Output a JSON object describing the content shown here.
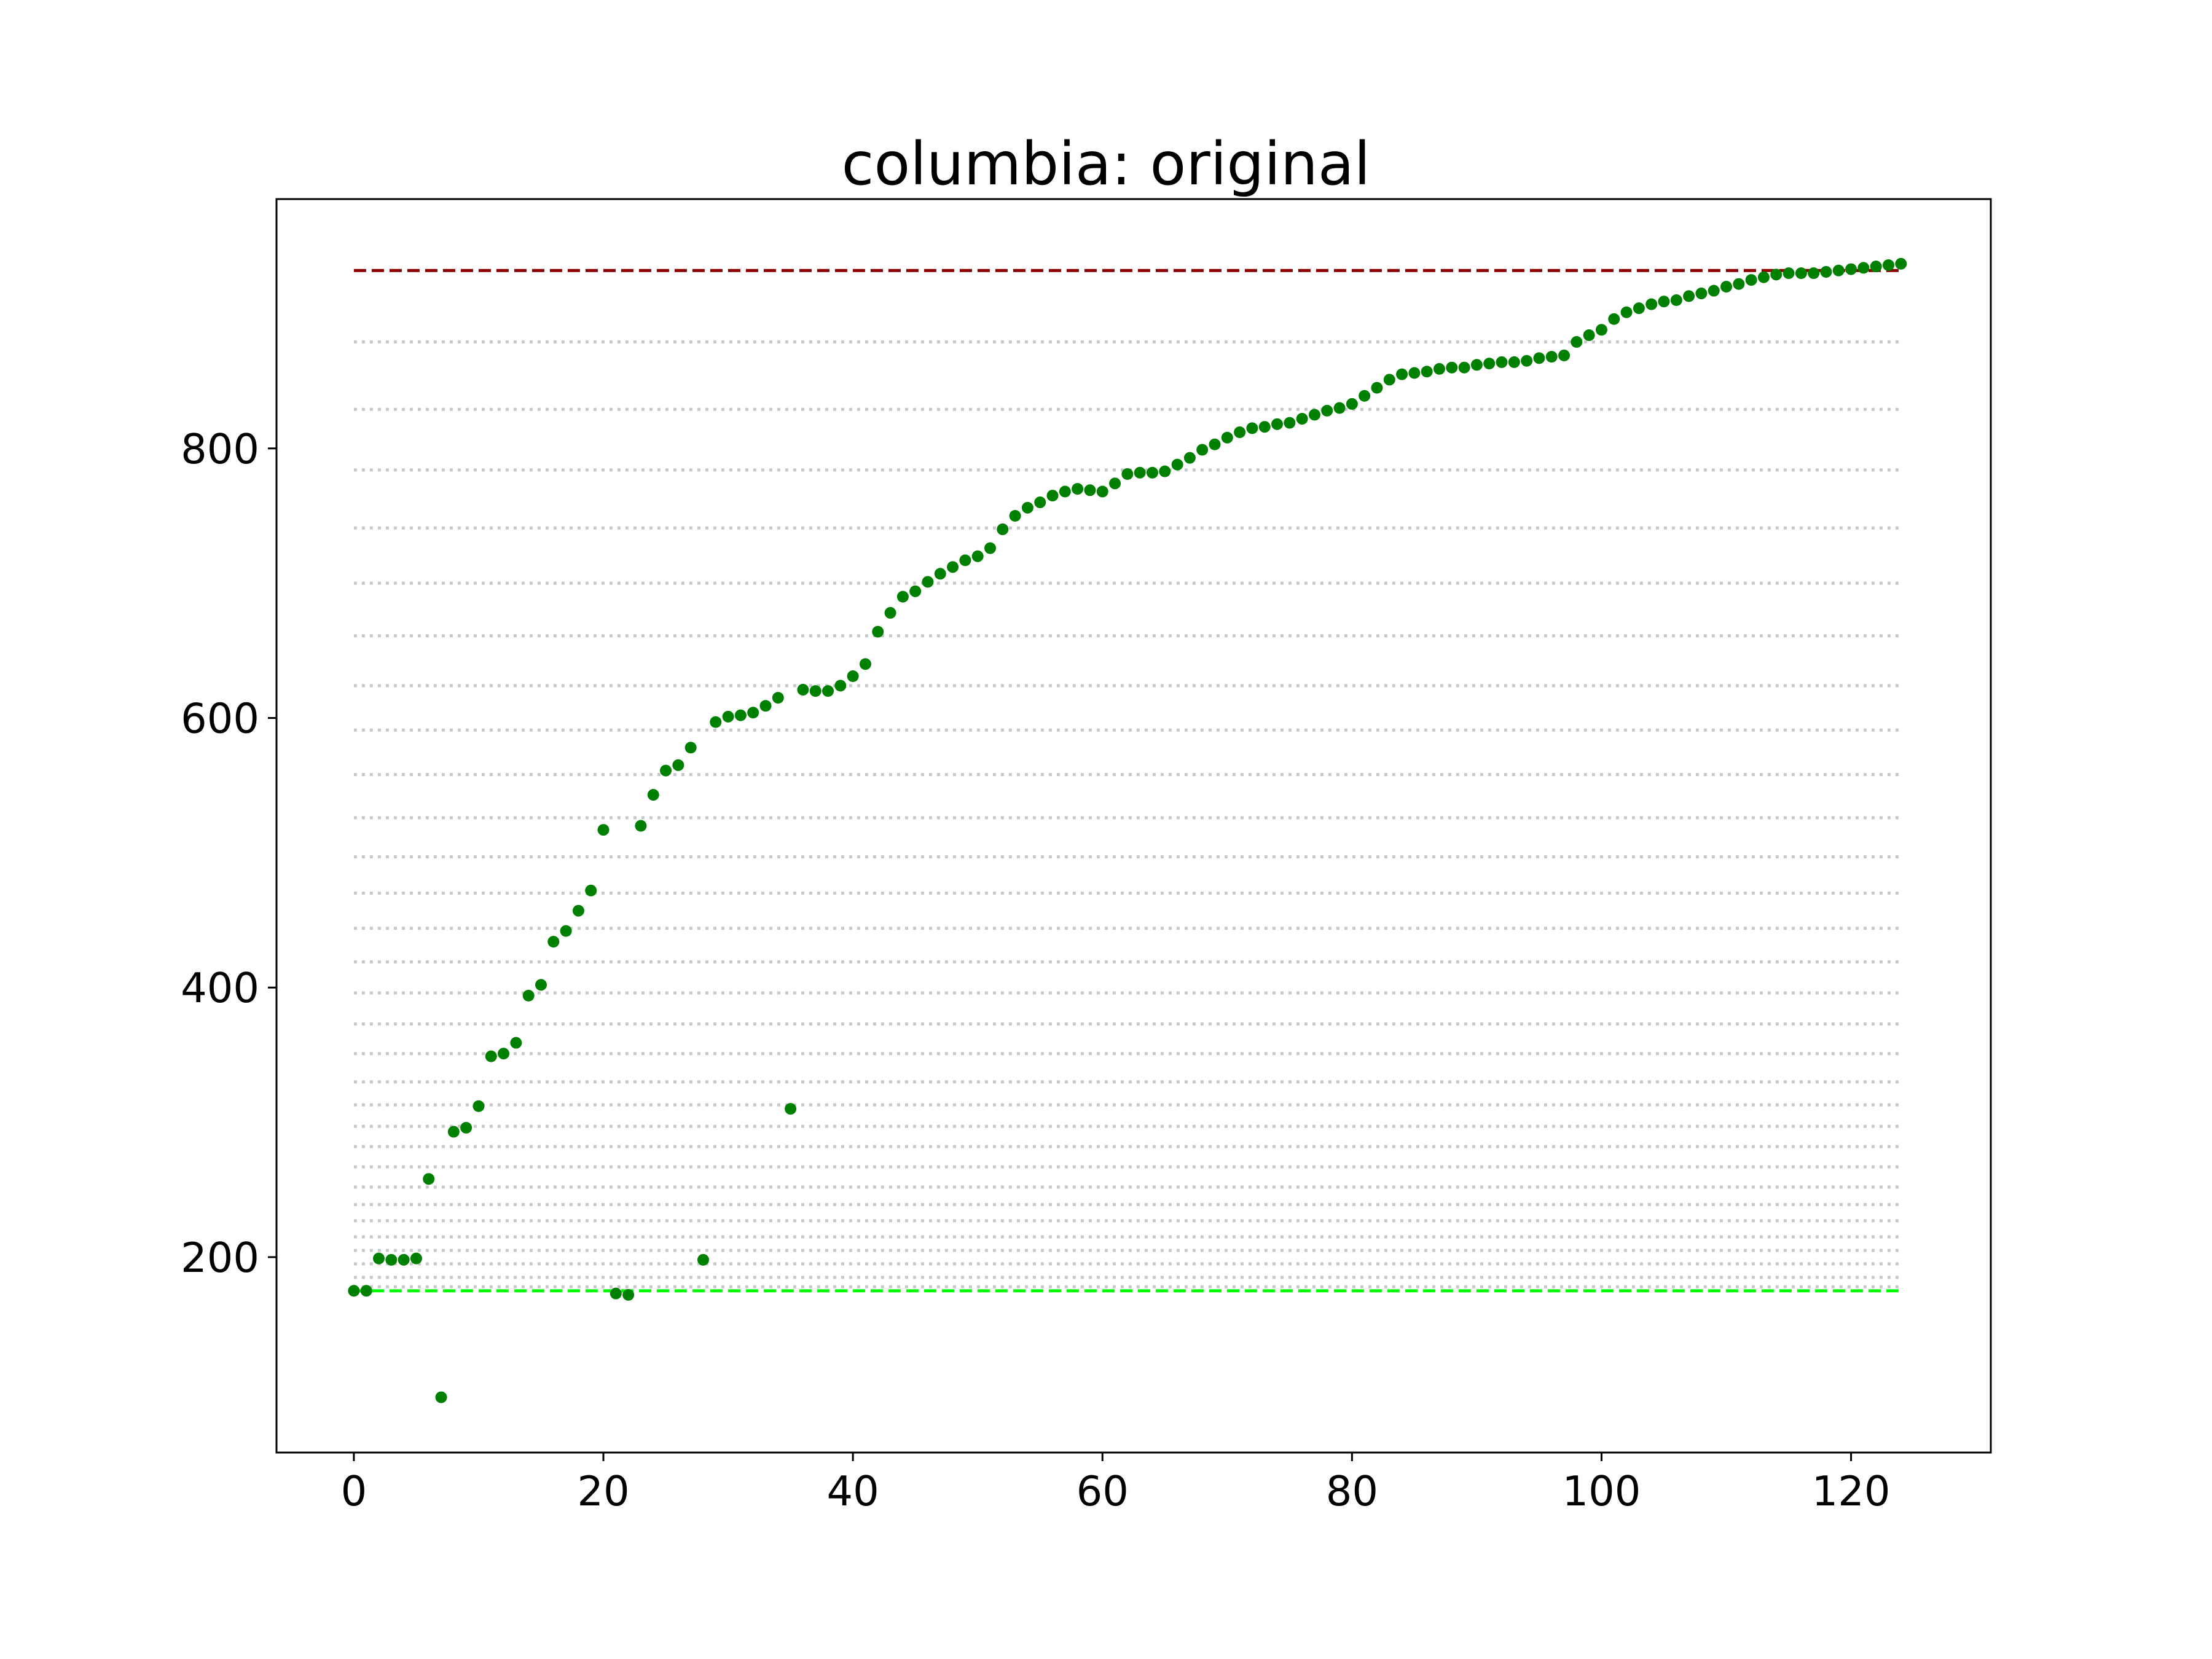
{
  "chart_data": {
    "type": "scatter",
    "title": "columbia: original",
    "xlabel": "",
    "ylabel": "",
    "xlim": [
      -6.2,
      131.2
    ],
    "ylim": [
      55,
      985
    ],
    "xticks": [
      0,
      20,
      40,
      60,
      80,
      100,
      120
    ],
    "yticks": [
      200,
      400,
      600,
      800
    ],
    "grid": false,
    "marker_color": "#008000",
    "series": [
      {
        "x": [
          0,
          1,
          2,
          3,
          4,
          5,
          6,
          7,
          8,
          9,
          10,
          11,
          12,
          13,
          14,
          15,
          16,
          17,
          18,
          19,
          20,
          21,
          22,
          23,
          24,
          25,
          26,
          27,
          28,
          29,
          30,
          31,
          32,
          33,
          34,
          35,
          36,
          37,
          38,
          39,
          40,
          41,
          42,
          43,
          44,
          45,
          46,
          47,
          48,
          49,
          50,
          51,
          52,
          53,
          54,
          55,
          56,
          57,
          58,
          59,
          60,
          61,
          62,
          63,
          64,
          65,
          66,
          67,
          68,
          69,
          70,
          71,
          72,
          73,
          74,
          75,
          76,
          77,
          78,
          79,
          80,
          81,
          82,
          83,
          84,
          85,
          86,
          87,
          88,
          89,
          90,
          91,
          92,
          93,
          94,
          95,
          96,
          97,
          98,
          99,
          100,
          101,
          102,
          103,
          104,
          105,
          106,
          107,
          108,
          109,
          110,
          111,
          112,
          113,
          114,
          115,
          116,
          117,
          118,
          119,
          120,
          121,
          122,
          123,
          124
        ],
        "y": [
          175,
          175,
          199,
          198,
          198,
          199,
          258,
          96,
          293,
          296,
          312,
          349,
          351,
          359,
          394,
          402,
          434,
          442,
          457,
          472,
          517,
          173,
          172,
          520,
          543,
          561,
          565,
          578,
          198,
          597,
          601,
          602,
          604,
          609,
          615,
          310,
          621,
          620,
          620,
          624,
          631,
          640,
          664,
          678,
          690,
          694,
          701,
          707,
          712,
          717,
          720,
          726,
          740,
          750,
          756,
          760,
          765,
          768,
          770,
          769,
          768,
          774,
          781,
          782,
          782,
          783,
          788,
          793,
          799,
          803,
          808,
          812,
          815,
          816,
          818,
          819,
          822,
          825,
          828,
          830,
          833,
          839,
          845,
          851,
          855,
          856,
          857,
          859,
          860,
          860,
          862,
          863,
          864,
          864,
          865,
          867,
          868,
          869,
          879,
          884,
          888,
          896,
          901,
          904,
          907,
          909,
          910,
          913,
          915,
          917,
          920,
          922,
          925,
          927,
          929,
          930,
          930,
          930,
          931,
          932,
          933,
          934,
          935,
          936,
          937
        ]
      }
    ],
    "reference_lines": [
      {
        "y": 932,
        "color": "#8b0000",
        "style": "dashed"
      },
      {
        "y": 175,
        "color": "#00ff00",
        "style": "dashed"
      }
    ],
    "dotted_levels": {
      "color": "#c8c8c8",
      "y": [
        178,
        185,
        195,
        205,
        215,
        227,
        239,
        252,
        267,
        282,
        297,
        313,
        330,
        351,
        373,
        396,
        419,
        444,
        470,
        497,
        526,
        558,
        591,
        624,
        661,
        700,
        741,
        784,
        829,
        879
      ]
    }
  }
}
